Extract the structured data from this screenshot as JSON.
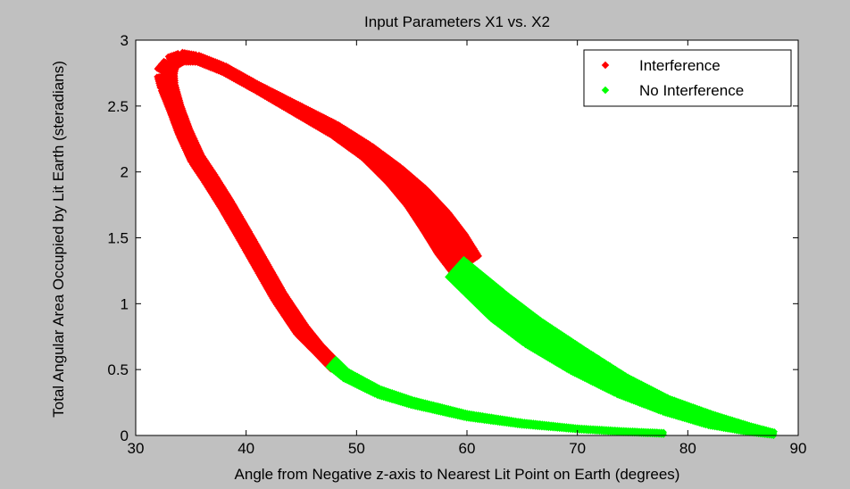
{
  "chart_data": {
    "type": "scatter",
    "title": "Input Parameters X1 vs. X2",
    "xlabel": "Angle from Negative z-axis to Nearest Lit Point on Earth (degrees)",
    "ylabel": "Total Angular Area Occupied by Lit Earth (steradians)",
    "xlim": [
      30,
      90
    ],
    "ylim": [
      0,
      3
    ],
    "xticks": [
      "30",
      "40",
      "50",
      "60",
      "70",
      "80",
      "90"
    ],
    "yticks": [
      "0",
      "0.5",
      "1",
      "1.5",
      "2",
      "2.5",
      "3"
    ],
    "grid": false,
    "legend_position": "top-right",
    "series": [
      {
        "name": "Interference",
        "color": "#ff0000",
        "marker": "diamond",
        "segments": [
          {
            "center": [
              [
                48,
                0.53
              ],
              [
                46.5,
                0.66
              ],
              [
                45,
                0.8
              ],
              [
                43,
                1.05
              ],
              [
                41.3,
                1.3
              ],
              [
                39.8,
                1.52
              ],
              [
                38.2,
                1.75
              ],
              [
                36.7,
                1.95
              ],
              [
                35.5,
                2.1
              ],
              [
                34.4,
                2.3
              ],
              [
                33.6,
                2.48
              ],
              [
                32.9,
                2.65
              ],
              [
                32.7,
                2.75
              ],
              [
                33.2,
                2.83
              ],
              [
                34.2,
                2.87
              ],
              [
                35.6,
                2.86
              ],
              [
                38,
                2.78
              ],
              [
                41,
                2.64
              ],
              [
                44.5,
                2.48
              ],
              [
                48,
                2.32
              ],
              [
                51,
                2.15
              ],
              [
                53.5,
                1.97
              ],
              [
                55.5,
                1.8
              ],
              [
                57.2,
                1.62
              ],
              [
                58.6,
                1.45
              ],
              [
                60,
                1.28
              ]
            ],
            "half_width": [
              0.04,
              0.04,
              0.05,
              0.05,
              0.05,
              0.05,
              0.05,
              0.05,
              0.05,
              0.05,
              0.05,
              0.06,
              0.07,
              0.05,
              0.04,
              0.03,
              0.03,
              0.03,
              0.04,
              0.05,
              0.06,
              0.08,
              0.1,
              0.12,
              0.13,
              0.12
            ]
          }
        ]
      },
      {
        "name": "No Interference",
        "color": "#00ff00",
        "marker": "diamond",
        "segments": [
          {
            "center": [
              [
                47.8,
                0.55
              ],
              [
                49,
                0.46
              ],
              [
                52,
                0.33
              ],
              [
                55,
                0.25
              ],
              [
                60,
                0.15
              ],
              [
                65,
                0.09
              ],
              [
                70,
                0.05
              ],
              [
                74,
                0.03
              ],
              [
                78,
                0.015
              ]
            ],
            "half_width": [
              0.04,
              0.035,
              0.03,
              0.025,
              0.02,
              0.015,
              0.01,
              0.01,
              0.008
            ]
          },
          {
            "center": [
              [
                59,
                1.27
              ],
              [
                61,
                1.12
              ],
              [
                63,
                0.97
              ],
              [
                66,
                0.78
              ],
              [
                70,
                0.57
              ],
              [
                74,
                0.38
              ],
              [
                78,
                0.23
              ],
              [
                82,
                0.12
              ],
              [
                85.5,
                0.05
              ],
              [
                88,
                0.01
              ]
            ],
            "half_width": [
              0.09,
              0.1,
              0.11,
              0.11,
              0.1,
              0.08,
              0.06,
              0.05,
              0.03,
              0.015
            ]
          }
        ]
      }
    ]
  }
}
